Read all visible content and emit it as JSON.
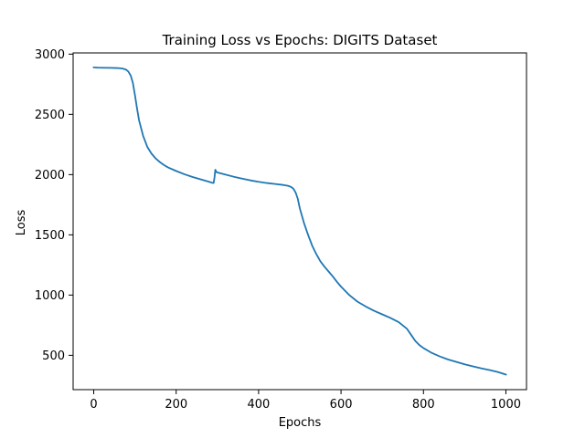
{
  "chart_data": {
    "type": "line",
    "title": "Training Loss vs Epochs: DIGITS Dataset",
    "xlabel": "Epochs",
    "ylabel": "Loss",
    "xlim": [
      -50,
      1050
    ],
    "ylim": [
      215,
      3010
    ],
    "xticks": [
      0,
      200,
      400,
      600,
      800,
      1000
    ],
    "yticks": [
      500,
      1000,
      1500,
      2000,
      2500,
      3000
    ],
    "xtick_labels": [
      "0",
      "200",
      "400",
      "600",
      "800",
      "1000"
    ],
    "ytick_labels": [
      "500",
      "1000",
      "1500",
      "2000",
      "2500",
      "3000"
    ],
    "grid": false,
    "series": [
      {
        "color": "#1f77b4",
        "x": [
          0,
          10,
          20,
          40,
          60,
          70,
          78,
          84,
          90,
          95,
          100,
          105,
          110,
          120,
          130,
          140,
          150,
          160,
          170,
          180,
          200,
          220,
          240,
          260,
          280,
          290,
          291,
          293,
          295,
          298,
          300,
          320,
          340,
          360,
          380,
          400,
          420,
          440,
          460,
          470,
          475,
          480,
          485,
          490,
          495,
          500,
          510,
          520,
          530,
          540,
          550,
          560,
          570,
          580,
          590,
          600,
          620,
          640,
          660,
          680,
          700,
          720,
          740,
          760,
          770,
          780,
          790,
          800,
          820,
          840,
          860,
          880,
          900,
          920,
          940,
          960,
          980,
          1000
        ],
        "y": [
          2890,
          2888,
          2887,
          2886,
          2884,
          2880,
          2872,
          2855,
          2820,
          2760,
          2660,
          2550,
          2450,
          2320,
          2230,
          2175,
          2135,
          2105,
          2080,
          2060,
          2030,
          2003,
          1980,
          1960,
          1940,
          1930,
          1932,
          1975,
          2040,
          2020,
          2018,
          2000,
          1982,
          1967,
          1952,
          1940,
          1930,
          1922,
          1914,
          1908,
          1903,
          1895,
          1880,
          1850,
          1800,
          1720,
          1600,
          1500,
          1410,
          1340,
          1280,
          1235,
          1195,
          1155,
          1110,
          1070,
          1000,
          945,
          905,
          870,
          840,
          810,
          775,
          720,
          670,
          620,
          585,
          560,
          520,
          490,
          465,
          445,
          425,
          408,
          392,
          378,
          362,
          340
        ]
      }
    ]
  }
}
